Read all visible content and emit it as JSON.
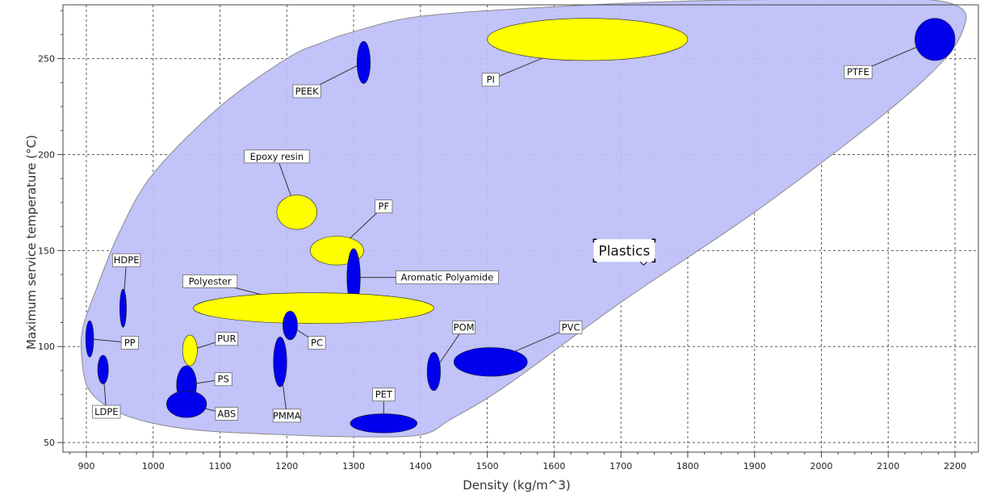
{
  "chart_data": {
    "type": "scatter",
    "xlabel": "Density (kg/m^3)",
    "ylabel": "Maximum service temperature (°C)",
    "xlim": [
      865,
      2235
    ],
    "ylim": [
      45,
      278
    ],
    "x_ticks": [
      900,
      1000,
      1100,
      1200,
      1300,
      1400,
      1500,
      1600,
      1700,
      1800,
      1900,
      2000,
      2100,
      2200
    ],
    "y_ticks": [
      50,
      100,
      150,
      200,
      250
    ],
    "grid": true,
    "region_label": "Plastics",
    "region_color": "#bcbef8",
    "thermoset_color": "#ffff00",
    "thermoplastic_color": "#0000ee",
    "materials": [
      {
        "label": "PTFE",
        "x": 2170,
        "y": 260,
        "rx": 30,
        "ry": 11,
        "color": "#0000ee",
        "text_x": 2055,
        "text_y": 243
      },
      {
        "label": "PI",
        "x": 1650,
        "y": 260,
        "rx": 150,
        "ry": 11,
        "color": "#ffff00",
        "text_x": 1505,
        "text_y": 239
      },
      {
        "label": "PEEK",
        "x": 1315,
        "y": 248,
        "rx": 10,
        "ry": 11,
        "color": "#0000ee",
        "text_x": 1230,
        "text_y": 233
      },
      {
        "label": "Epoxy resin",
        "x": 1215,
        "y": 170,
        "rx": 30,
        "ry": 9,
        "color": "#ffff00",
        "text_x": 1185,
        "text_y": 199
      },
      {
        "label": "PF",
        "x": 1275,
        "y": 150,
        "rx": 40,
        "ry": 7.5,
        "color": "#ffff00",
        "text_x": 1345,
        "text_y": 173
      },
      {
        "label": "Aromatic Polyamide",
        "x": 1300,
        "y": 136,
        "rx": 10,
        "ry": 15,
        "color": "#0000ee",
        "text_x": 1440,
        "text_y": 136
      },
      {
        "label": "HDPE",
        "x": 955,
        "y": 120,
        "rx": 5,
        "ry": 10,
        "color": "#0000ee",
        "text_x": 960,
        "text_y": 145
      },
      {
        "label": "Polyester",
        "x": 1240,
        "y": 120,
        "rx": 180,
        "ry": 8,
        "color": "#ffff00",
        "text_x": 1085,
        "text_y": 134
      },
      {
        "label": "PC",
        "x": 1205,
        "y": 111,
        "rx": 11,
        "ry": 7.5,
        "color": "#0000ee",
        "text_x": 1245,
        "text_y": 102
      },
      {
        "label": "PP",
        "x": 905,
        "y": 104,
        "rx": 6,
        "ry": 9.5,
        "color": "#0000ee",
        "text_x": 965,
        "text_y": 102
      },
      {
        "label": "PUR",
        "x": 1055,
        "y": 98,
        "rx": 11,
        "ry": 8,
        "color": "#ffff00",
        "text_x": 1110,
        "text_y": 104
      },
      {
        "label": "PMMA",
        "x": 1190,
        "y": 92,
        "rx": 10,
        "ry": 13,
        "color": "#0000ee",
        "text_x": 1200,
        "text_y": 64
      },
      {
        "label": "POM",
        "x": 1420,
        "y": 87,
        "rx": 10,
        "ry": 10,
        "color": "#0000ee",
        "text_x": 1465,
        "text_y": 110
      },
      {
        "label": "PVC",
        "x": 1505,
        "y": 92,
        "rx": 55,
        "ry": 7.5,
        "color": "#0000ee",
        "text_x": 1625,
        "text_y": 110
      },
      {
        "label": "LDPE",
        "x": 925,
        "y": 88,
        "rx": 8,
        "ry": 7.5,
        "color": "#0000ee",
        "text_x": 930,
        "text_y": 66
      },
      {
        "label": "PS",
        "x": 1050,
        "y": 80,
        "rx": 15,
        "ry": 10,
        "color": "#0000ee",
        "text_x": 1105,
        "text_y": 83
      },
      {
        "label": "PET",
        "x": 1345,
        "y": 60,
        "rx": 50,
        "ry": 5,
        "color": "#0000ee",
        "text_x": 1345,
        "text_y": 75
      },
      {
        "label": "ABS",
        "x": 1050,
        "y": 70,
        "rx": 30,
        "ry": 7,
        "color": "#0000ee",
        "text_x": 1110,
        "text_y": 65
      }
    ]
  }
}
